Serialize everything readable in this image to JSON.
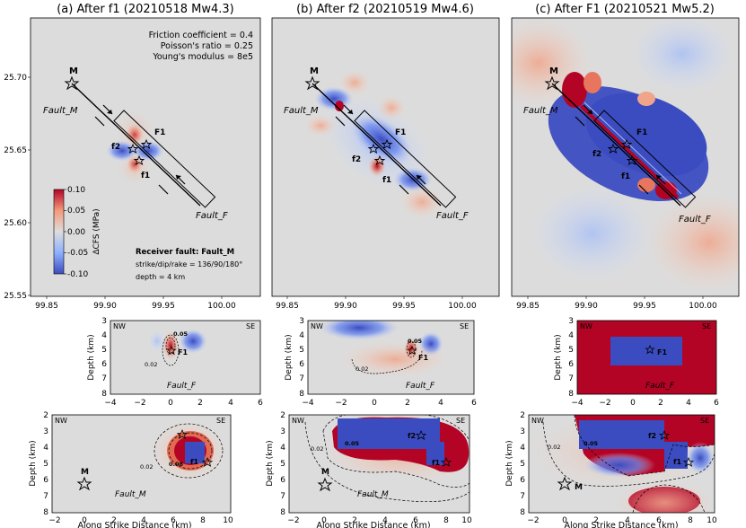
{
  "colors": {
    "positive": "#b40426",
    "negative": "#3b4cc0",
    "neutral": "#dddddd",
    "fault_line": "#000000"
  },
  "titles": [
    "(a) After f1 (20210518 Mw4.3)",
    "(b) After f2 (20210519 Mw4.6)",
    "(c) After F1 (20210521 Mw5.2)"
  ],
  "top_map": {
    "y_ticks": [
      "25.70",
      "25.65",
      "25.60",
      "25.55"
    ],
    "x_ticks": [
      "99.85",
      "99.90",
      "99.95",
      "100.00"
    ],
    "labels": {
      "M": "M",
      "F1": "F1",
      "f1": "f1",
      "f2": "f2",
      "fault_m": "Fault_M",
      "fault_f": "Fault_F"
    },
    "params": [
      "Friction coefficient = 0.4",
      "Poisson's ratio = 0.25",
      "Young's modulus = 8e5"
    ],
    "receiver": {
      "title": "Receiver fault: Fault_M",
      "sdr": "strike/dip/rake = 136/90/180°",
      "depth": "depth = 4 km"
    },
    "colorbar": {
      "label": "ΔCFS (MPa)",
      "ticks": [
        "0.10",
        "0.05",
        "0.00",
        "-0.05",
        "-0.10"
      ]
    }
  },
  "middle_section": {
    "ylabel": "Depth (km)",
    "y_ticks": [
      "3",
      "4",
      "5",
      "6",
      "7",
      "8"
    ],
    "x_ticks": [
      "−4",
      "−2",
      "0",
      "2",
      "4",
      "6"
    ],
    "nw": "NW",
    "se": "SE",
    "fault": "Fault_F",
    "contour_05": "0.05",
    "contour_02": "0.02",
    "star": "F1"
  },
  "bottom_section": {
    "ylabel": "Depth (km)",
    "xlabel": "Along Strike Distance (km)",
    "y_ticks": [
      "2",
      "3",
      "4",
      "5",
      "6",
      "7",
      "8"
    ],
    "x_ticks": [
      "−2",
      "0",
      "2",
      "4",
      "6",
      "8",
      "10"
    ],
    "nw": "NW",
    "se": "SE",
    "fault": "Fault_M",
    "m": "M",
    "f1": "f1",
    "f2": "f2",
    "contour_02": "0.02",
    "contour_05": "0.05",
    "contour_08": "0.08"
  }
}
